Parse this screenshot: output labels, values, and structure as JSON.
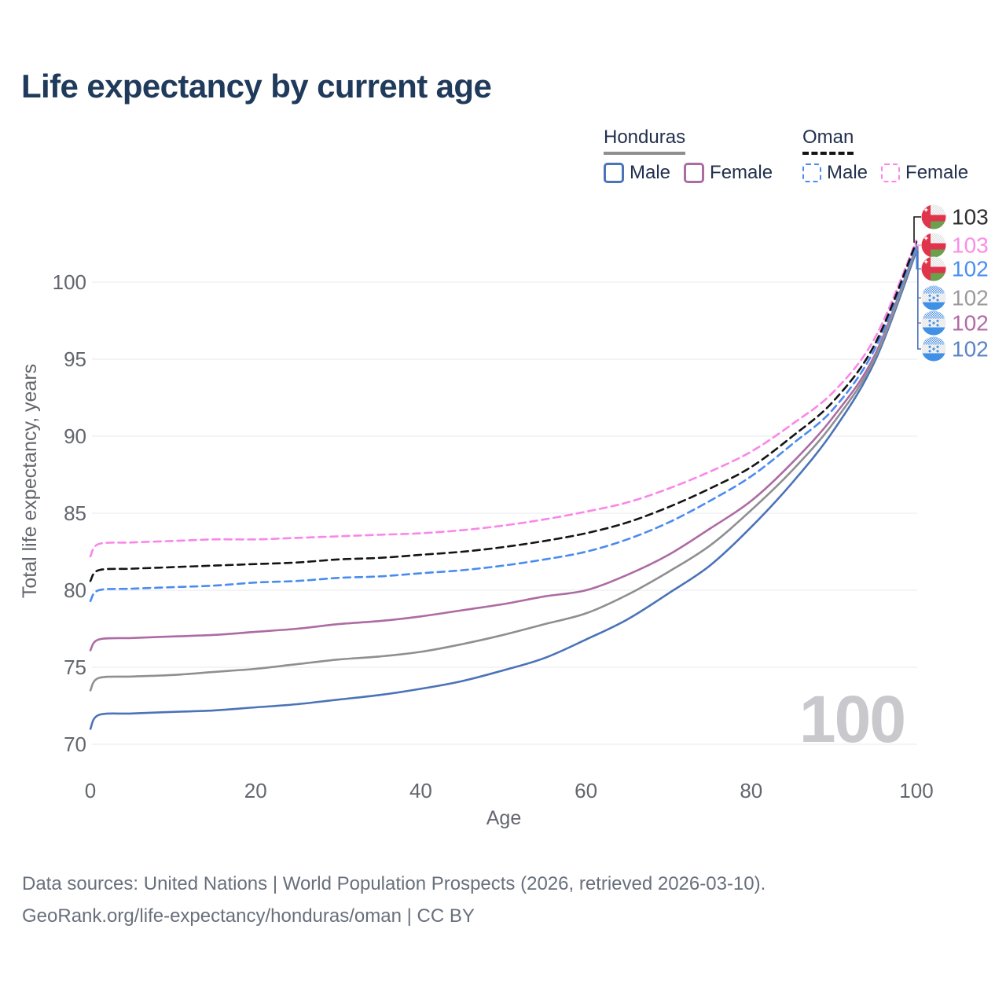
{
  "title": "Life expectancy by current age",
  "legend": {
    "honduras": {
      "name": "Honduras",
      "line_style": "solid",
      "line_color": "#8f8f92",
      "male_label": "Male",
      "male_color": "#4a73b8",
      "female_label": "Female",
      "female_color": "#ad6ba3"
    },
    "oman": {
      "name": "Oman",
      "line_style": "dashed",
      "line_color": "#141414",
      "male_label": "Male",
      "male_color": "#4a8bf0",
      "female_label": "Female",
      "female_color": "#fa86e8"
    }
  },
  "chart_data": {
    "type": "line",
    "title": "Life expectancy by current age",
    "xlabel": "Age",
    "ylabel": "Total life expectancy, years",
    "x_ticks": [
      0,
      20,
      40,
      60,
      80,
      100
    ],
    "y_ticks": [
      70,
      75,
      80,
      85,
      90,
      95,
      100
    ],
    "xlim": [
      0,
      100
    ],
    "ylim": [
      70,
      103
    ],
    "grid": "horizontal",
    "legend_position": "top-right",
    "watermark": "100",
    "ages": [
      0,
      1,
      5,
      10,
      15,
      20,
      25,
      30,
      35,
      40,
      45,
      50,
      55,
      60,
      65,
      70,
      75,
      80,
      85,
      90,
      95,
      100
    ],
    "series": [
      {
        "id": "oman-both",
        "name": "Oman (both sexes)",
        "country": "Oman",
        "sex": "both",
        "flag": "oman",
        "color": "#141414",
        "label_color": "#2f2f2f",
        "line_style": "dashed",
        "end_label": "103",
        "values": [
          80.6,
          81.3,
          81.4,
          81.5,
          81.6,
          81.7,
          81.8,
          82.0,
          82.1,
          82.3,
          82.5,
          82.8,
          83.2,
          83.7,
          84.4,
          85.4,
          86.6,
          88.0,
          90.0,
          92.3,
          96.0,
          102.6
        ]
      },
      {
        "id": "oman-female",
        "name": "Oman Female",
        "country": "Oman",
        "sex": "female",
        "flag": "oman",
        "color": "#fa86e8",
        "label_color": "#fb8ce8",
        "line_style": "dashed",
        "end_label": "103",
        "values": [
          82.2,
          83.0,
          83.1,
          83.2,
          83.3,
          83.3,
          83.4,
          83.5,
          83.6,
          83.7,
          83.9,
          84.2,
          84.6,
          85.1,
          85.7,
          86.6,
          87.7,
          89.0,
          90.8,
          92.9,
          96.4,
          102.7
        ]
      },
      {
        "id": "oman-male",
        "name": "Oman Male",
        "country": "Oman",
        "sex": "male",
        "flag": "oman",
        "color": "#4a8bf0",
        "label_color": "#4a90f0",
        "line_style": "dashed",
        "end_label": "102",
        "values": [
          79.3,
          80.0,
          80.1,
          80.2,
          80.3,
          80.5,
          80.6,
          80.8,
          80.9,
          81.1,
          81.3,
          81.6,
          82.0,
          82.5,
          83.3,
          84.4,
          85.8,
          87.4,
          89.5,
          91.8,
          95.7,
          102.4
        ]
      },
      {
        "id": "honduras-both",
        "name": "Honduras (both sexes)",
        "country": "Honduras",
        "sex": "both",
        "flag": "honduras",
        "color": "#8f8f92",
        "label_color": "#9b9b9b",
        "line_style": "solid",
        "end_label": "102",
        "values": [
          73.5,
          74.3,
          74.4,
          74.5,
          74.7,
          74.9,
          75.2,
          75.5,
          75.7,
          76.0,
          76.5,
          77.1,
          77.8,
          78.5,
          79.7,
          81.2,
          82.9,
          85.2,
          87.8,
          90.9,
          95.1,
          102.2
        ]
      },
      {
        "id": "honduras-female",
        "name": "Honduras Female",
        "country": "Honduras",
        "sex": "female",
        "flag": "honduras",
        "color": "#ad6ba3",
        "label_color": "#b16ba4",
        "line_style": "solid",
        "end_label": "102",
        "values": [
          76.1,
          76.8,
          76.9,
          77.0,
          77.1,
          77.3,
          77.5,
          77.8,
          78.0,
          78.3,
          78.7,
          79.1,
          79.6,
          80.0,
          81.0,
          82.3,
          84.0,
          85.8,
          88.3,
          91.3,
          95.3,
          102.3
        ]
      },
      {
        "id": "honduras-male",
        "name": "Honduras Male",
        "country": "Honduras",
        "sex": "male",
        "flag": "honduras",
        "color": "#4a73b8",
        "label_color": "#5b84c6",
        "line_style": "solid",
        "end_label": "102",
        "values": [
          71.0,
          71.9,
          72.0,
          72.1,
          72.2,
          72.4,
          72.6,
          72.9,
          73.2,
          73.6,
          74.1,
          74.8,
          75.6,
          76.8,
          78.1,
          79.8,
          81.6,
          84.1,
          87.0,
          90.4,
          94.9,
          102.0
        ]
      }
    ]
  },
  "footer": {
    "line1": "Data sources: United Nations | World Population Prospects (2026, retrieved 2026-03-10).",
    "line2": "GeoRank.org/life-expectancy/honduras/oman | CC BY"
  }
}
